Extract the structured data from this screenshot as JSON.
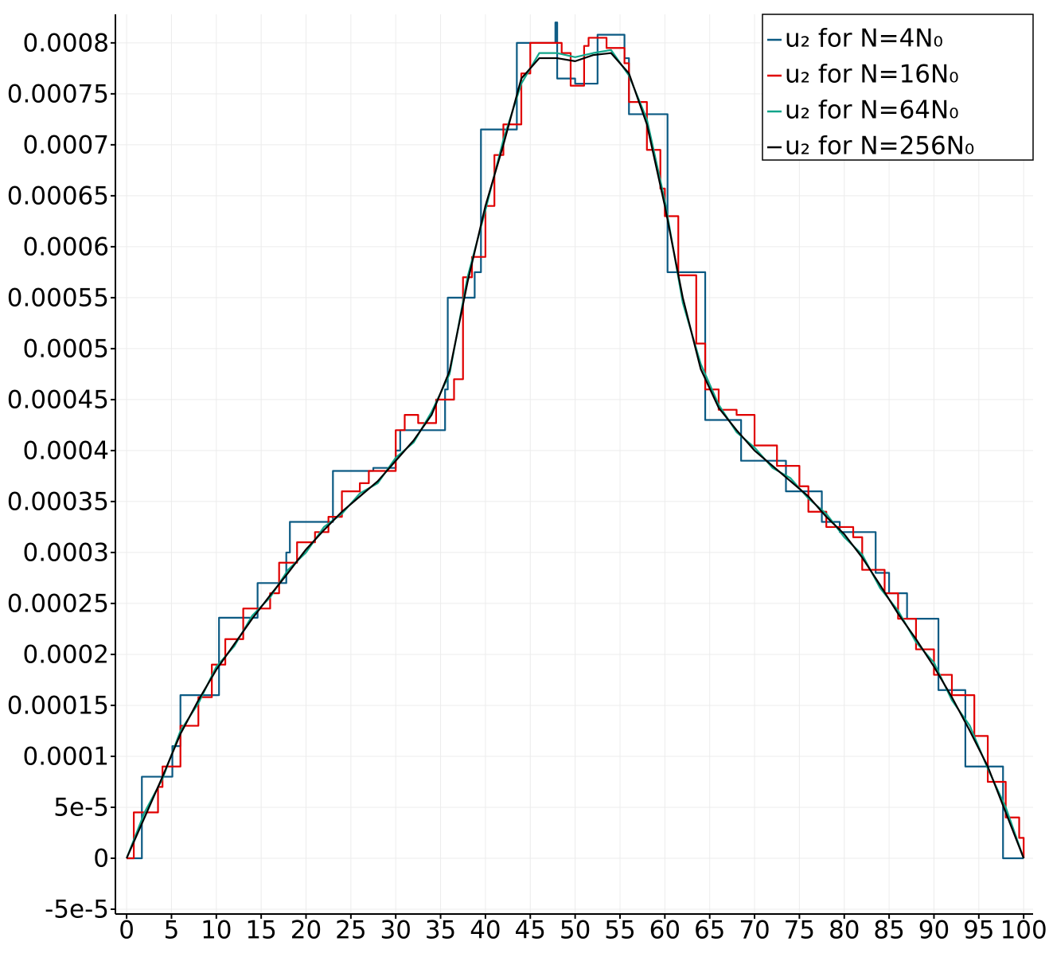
{
  "chart_data": {
    "type": "line",
    "xlim": [
      -1.25,
      101.05
    ],
    "ylim": [
      -5.47e-05,
      0.000828
    ],
    "xticks": [
      0,
      5,
      10,
      15,
      20,
      25,
      30,
      35,
      40,
      45,
      50,
      55,
      60,
      65,
      70,
      75,
      80,
      85,
      90,
      95,
      100
    ],
    "yticks": [
      {
        "value": -5e-05,
        "label": "-5e-5"
      },
      0,
      {
        "value": 5e-05,
        "label": "5e-5"
      },
      0.0001,
      0.00015,
      0.0002,
      0.00025,
      0.0003,
      0.00035,
      0.0004,
      0.00045,
      0.0005,
      0.00055,
      0.0006,
      0.00065,
      0.0007,
      0.00075,
      0.0008
    ],
    "grid": true,
    "legend": "upper right",
    "series": [
      {
        "name": "u₂ for N=4N₀",
        "color": "#0b5a83",
        "step": true,
        "x": [
          0,
          1.7,
          5.1,
          6,
          10.3,
          14.6,
          17.8,
          18.2,
          23,
          27.5,
          30,
          30.5,
          35.5,
          35.8,
          38.8,
          39.5,
          43.5,
          47.8,
          48,
          48.2,
          50,
          52.5,
          55.5,
          56,
          60.3,
          64.5,
          68.5,
          73.5,
          77.5,
          79.5,
          83.5,
          85,
          87,
          90.5,
          93.5,
          97.7,
          100
        ],
        "values": [
          0,
          8e-05,
          0.00011,
          0.00016,
          0.000236,
          0.00027,
          0.0003,
          0.00033,
          0.00038,
          0.000383,
          0.0004,
          0.00042,
          0.00046,
          0.00055,
          0.000575,
          0.000715,
          0.0008,
          0.00082,
          0.000765,
          0.000765,
          0.00076,
          0.000808,
          0.000785,
          0.00073,
          0.000575,
          0.00043,
          0.00039,
          0.00036,
          0.00033,
          0.00032,
          0.00028,
          0.00026,
          0.000235,
          0.000165,
          9e-05,
          0,
          0
        ]
      },
      {
        "name": "u₂ for N=16N₀",
        "color": "#e00000",
        "step": true,
        "x": [
          0,
          0.8,
          3.5,
          4,
          6,
          8,
          9.5,
          11,
          13,
          16,
          17,
          19,
          21,
          22.5,
          24,
          26,
          27,
          30,
          31,
          32.5,
          34.5,
          36.5,
          37.5,
          38.5,
          40,
          41,
          42,
          44,
          45,
          48.5,
          49.5,
          51,
          51.5,
          53.5,
          55.5,
          56,
          58,
          59.5,
          60,
          61.5,
          63.5,
          64.5,
          66,
          68,
          70,
          72.5,
          75,
          76,
          78,
          81,
          82,
          84.5,
          86,
          88,
          90,
          92,
          94.5,
          96,
          98,
          99.5,
          100
        ],
        "values": [
          0,
          4.5e-05,
          7e-05,
          9e-05,
          0.00013,
          0.000158,
          0.00019,
          0.000215,
          0.000245,
          0.00026,
          0.00029,
          0.00031,
          0.00032,
          0.000335,
          0.00036,
          0.000368,
          0.00038,
          0.00042,
          0.000435,
          0.000427,
          0.00045,
          0.00047,
          0.00057,
          0.00059,
          0.00064,
          0.00069,
          0.00072,
          0.00077,
          0.0008,
          0.00079,
          0.000758,
          0.000797,
          0.000805,
          0.000795,
          0.00078,
          0.000742,
          0.000695,
          0.000657,
          0.00063,
          0.000572,
          0.000505,
          0.00046,
          0.00044,
          0.000435,
          0.000405,
          0.000385,
          0.000365,
          0.00034,
          0.000325,
          0.000315,
          0.000283,
          0.00026,
          0.000235,
          0.000205,
          0.00018,
          0.00016,
          0.00012,
          7.5e-05,
          4e-05,
          2e-05,
          0
        ]
      },
      {
        "name": "u₂ for N=64N₀",
        "color": "#12a58a",
        "step": false,
        "x": [
          0,
          2,
          4,
          6,
          8,
          10,
          12,
          14,
          16,
          18,
          20,
          22,
          24,
          26,
          28,
          30,
          32,
          34,
          36,
          38,
          40,
          42,
          44,
          46,
          48,
          50,
          52,
          54,
          56,
          58,
          60,
          62,
          64,
          66,
          68,
          70,
          72,
          74,
          76,
          78,
          80,
          82,
          84,
          86,
          88,
          90,
          92,
          94,
          96,
          98,
          100
        ],
        "values": [
          0,
          4.5e-05,
          7.8e-05,
          0.000125,
          0.000152,
          0.000188,
          0.000208,
          0.000238,
          0.000256,
          0.000283,
          0.0003,
          0.000325,
          0.000338,
          0.000358,
          0.000368,
          0.000393,
          0.000408,
          0.000438,
          0.000475,
          0.00057,
          0.000636,
          0.000705,
          0.00076,
          0.00079,
          0.00079,
          0.000786,
          0.00079,
          0.000793,
          0.000768,
          0.000725,
          0.000645,
          0.000545,
          0.000485,
          0.000445,
          0.000418,
          0.000403,
          0.000383,
          0.000373,
          0.000353,
          0.000338,
          0.000315,
          0.000298,
          0.000265,
          0.000243,
          0.000212,
          0.000192,
          0.000155,
          0.00013,
          8.8e-05,
          5e-05,
          0
        ]
      },
      {
        "name": "u₂ for N=256N₀",
        "color": "#000000",
        "step": false,
        "x": [
          0,
          2,
          4,
          6,
          8,
          10,
          12,
          14,
          16,
          18,
          20,
          22,
          24,
          26,
          28,
          30,
          32,
          34,
          36,
          38,
          40,
          42,
          44,
          46,
          48,
          50,
          52,
          54,
          56,
          58,
          60,
          62,
          64,
          66,
          68,
          70,
          72,
          74,
          76,
          78,
          80,
          82,
          84,
          86,
          88,
          90,
          92,
          94,
          96,
          98,
          100
        ],
        "values": [
          0,
          4e-05,
          8e-05,
          0.000122,
          0.000155,
          0.000185,
          0.00021,
          0.000235,
          0.000258,
          0.00028,
          0.000303,
          0.000322,
          0.00034,
          0.000355,
          0.00037,
          0.00039,
          0.00041,
          0.000435,
          0.000478,
          0.000565,
          0.00064,
          0.0007,
          0.000765,
          0.000785,
          0.000785,
          0.000782,
          0.000788,
          0.00079,
          0.00077,
          0.00072,
          0.00064,
          0.00055,
          0.00048,
          0.000442,
          0.00042,
          0.0004,
          0.000385,
          0.00037,
          0.000355,
          0.000335,
          0.000318,
          0.000295,
          0.000268,
          0.00024,
          0.000215,
          0.000188,
          0.000158,
          0.000125,
          9e-05,
          4.5e-05,
          0
        ]
      }
    ]
  }
}
